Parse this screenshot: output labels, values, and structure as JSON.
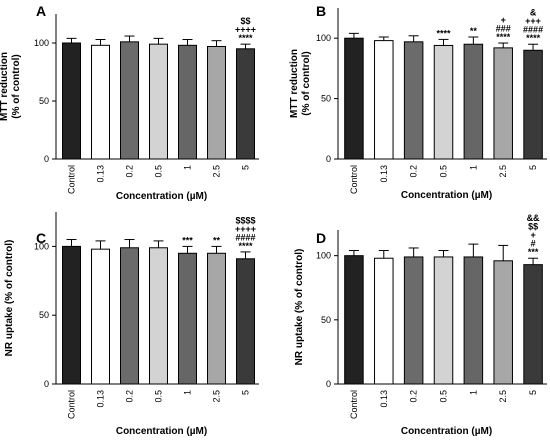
{
  "chart_data": [
    {
      "type": "bar",
      "panel": "A",
      "ylabel": [
        "MTT reduction",
        "(% of control)"
      ],
      "xlabel": "Concentration (µM)",
      "ylim": [
        0,
        125
      ],
      "yticks": [
        0,
        50,
        100
      ],
      "categories": [
        "Control",
        "0.13",
        "0.2",
        "0.5",
        "1",
        "2.5",
        "5"
      ],
      "values": [
        100,
        98,
        101,
        99,
        98,
        97,
        95
      ],
      "errors": [
        4,
        5,
        5,
        5,
        5,
        5,
        4
      ],
      "annotations": [
        "",
        "",
        "",
        "",
        "",
        "",
        "$$\n++++\n****"
      ]
    },
    {
      "type": "bar",
      "panel": "B",
      "ylabel": [
        "MTT reduction",
        "(% of control)"
      ],
      "xlabel": "Concentration (µM)",
      "ylim": [
        0,
        125
      ],
      "yticks": [
        0,
        50,
        100
      ],
      "categories": [
        "Control",
        "0.13",
        "0.2",
        "0.5",
        "1",
        "2.5",
        "5"
      ],
      "values": [
        100,
        98,
        97,
        94,
        95,
        92,
        90
      ],
      "errors": [
        4,
        3,
        5,
        5,
        6,
        4,
        5
      ],
      "annotations": [
        "",
        "",
        "",
        "****",
        "**",
        "+\n###\n****",
        "&\n+++\n####\n****"
      ]
    },
    {
      "type": "bar",
      "panel": "C",
      "ylabel": [
        "NR uptake (% of control)"
      ],
      "xlabel": "Concentration (µM)",
      "ylim": [
        0,
        125
      ],
      "yticks": [
        0,
        50,
        100
      ],
      "categories": [
        "Control",
        "0.13",
        "0.2",
        "0.5",
        "1",
        "2.5",
        "5"
      ],
      "values": [
        100,
        98,
        99,
        99,
        95,
        95,
        91
      ],
      "errors": [
        5,
        6,
        6,
        5,
        5,
        5,
        5
      ],
      "annotations": [
        "",
        "",
        "",
        "",
        "***",
        "**",
        "$$$$\n++++\n####\n****"
      ]
    },
    {
      "type": "bar",
      "panel": "D",
      "ylabel": [
        "NR uptake (% of control)"
      ],
      "xlabel": "Concentration (µM)",
      "ylim": [
        0,
        120
      ],
      "yticks": [
        0,
        50,
        100
      ],
      "categories": [
        "Control",
        "0.13",
        "0.2",
        "0.5",
        "1",
        "2.5",
        "5"
      ],
      "values": [
        100,
        98,
        99,
        99,
        99,
        96,
        93
      ],
      "errors": [
        4,
        6,
        7,
        5,
        10,
        12,
        5
      ],
      "annotations": [
        "",
        "",
        "",
        "",
        "",
        "",
        "&&\n$$\n+\n#\n***"
      ]
    }
  ],
  "colors": {
    "bars": [
      "#222222",
      "#ffffff",
      "#6b6b6b",
      "#d3d3d3",
      "#666666",
      "#a7a7a7",
      "#3a3a3a"
    ],
    "outline": "#000000"
  }
}
